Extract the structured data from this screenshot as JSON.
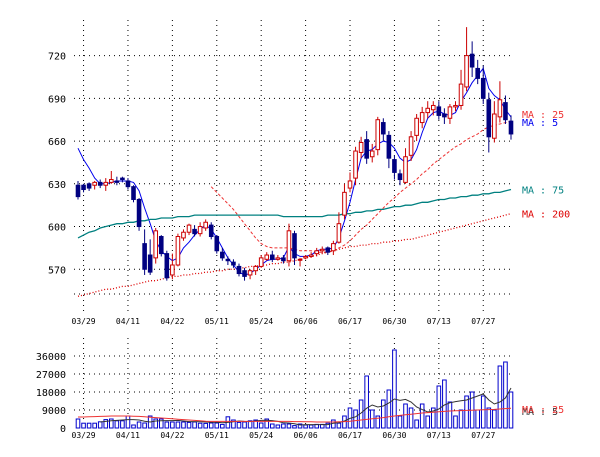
{
  "chart_data": [
    {
      "type": "candlestick",
      "ylim": [
        540,
        745
      ],
      "y_ticks": [
        570,
        600,
        630,
        660,
        690,
        720
      ],
      "x_tick_labels": [
        "03/29",
        "04/11",
        "04/22",
        "05/11",
        "05/24",
        "06/06",
        "06/17",
        "06/30",
        "07/13",
        "07/27"
      ],
      "x_tick_index": [
        1,
        9,
        17,
        25,
        33,
        41,
        49,
        57,
        65,
        73
      ],
      "candles": [
        [
          629,
          621,
          632,
          619
        ],
        [
          629,
          626,
          630,
          624
        ],
        [
          630,
          627,
          631,
          625
        ],
        [
          629,
          631,
          632,
          626
        ],
        [
          631,
          629,
          633,
          627
        ],
        [
          629,
          631,
          634,
          625
        ],
        [
          631,
          633,
          639,
          630
        ],
        [
          632,
          631,
          635,
          629
        ],
        [
          634,
          633,
          635,
          631
        ],
        [
          632,
          628,
          634,
          626
        ],
        [
          628,
          619,
          629,
          617
        ],
        [
          619,
          600,
          620,
          597
        ],
        [
          588,
          570,
          598,
          566
        ],
        [
          580,
          568,
          591,
          566
        ],
        [
          578,
          597,
          599,
          574
        ],
        [
          593,
          581,
          594,
          579
        ],
        [
          581,
          564,
          583,
          562
        ],
        [
          566,
          573,
          581,
          563
        ],
        [
          573,
          593,
          595,
          572
        ],
        [
          592,
          596,
          598,
          590
        ],
        [
          596,
          601,
          602,
          594
        ],
        [
          598,
          595,
          601,
          593
        ],
        [
          595,
          600,
          603,
          593
        ],
        [
          599,
          603,
          605,
          597
        ],
        [
          601,
          593,
          603,
          591
        ],
        [
          593,
          583,
          594,
          581
        ],
        [
          582,
          578,
          585,
          576
        ],
        [
          577,
          576,
          579,
          573
        ],
        [
          575,
          573,
          577,
          571
        ],
        [
          572,
          567,
          574,
          565
        ],
        [
          569,
          565,
          571,
          562
        ],
        [
          566,
          569,
          570,
          563
        ],
        [
          569,
          572,
          573,
          566
        ],
        [
          572,
          578,
          580,
          571
        ],
        [
          577,
          580,
          582,
          576
        ],
        [
          580,
          577,
          583,
          575
        ],
        [
          577,
          578,
          580,
          576
        ],
        [
          578,
          576,
          580,
          574
        ],
        [
          576,
          597,
          602,
          572
        ],
        [
          595,
          578,
          597,
          573
        ],
        [
          577,
          577,
          578,
          572
        ],
        [
          578,
          579,
          580,
          577
        ],
        [
          579,
          580,
          582,
          578
        ],
        [
          581,
          583,
          585,
          579
        ],
        [
          583,
          584,
          586,
          581
        ],
        [
          585,
          582,
          586,
          580
        ],
        [
          583,
          588,
          590,
          580
        ],
        [
          589,
          602,
          610,
          588
        ],
        [
          608,
          624,
          630,
          605
        ],
        [
          627,
          632,
          638,
          624
        ],
        [
          634,
          653,
          656,
          629
        ],
        [
          652,
          659,
          663,
          648
        ],
        [
          661,
          648,
          667,
          644
        ],
        [
          649,
          653,
          658,
          645
        ],
        [
          654,
          675,
          677,
          650
        ],
        [
          673,
          665,
          676,
          660
        ],
        [
          664,
          648,
          667,
          641
        ],
        [
          647,
          638,
          650,
          633
        ],
        [
          637,
          633,
          640,
          629
        ],
        [
          631,
          649,
          655,
          630
        ],
        [
          650,
          663,
          667,
          646
        ],
        [
          664,
          676,
          679,
          660
        ],
        [
          673,
          680,
          684,
          669
        ],
        [
          680,
          683,
          688,
          676
        ],
        [
          682,
          685,
          688,
          678
        ],
        [
          684,
          678,
          688,
          675
        ],
        [
          679,
          677,
          683,
          672
        ],
        [
          676,
          684,
          686,
          672
        ],
        [
          684,
          685,
          688,
          681
        ],
        [
          685,
          700,
          710,
          682
        ],
        [
          698,
          720,
          740,
          695
        ],
        [
          721,
          712,
          730,
          705
        ],
        [
          711,
          704,
          717,
          700
        ],
        [
          704,
          690,
          713,
          686
        ],
        [
          689,
          663,
          694,
          652
        ],
        [
          662,
          679,
          688,
          659
        ],
        [
          677,
          689,
          702,
          673
        ],
        [
          687,
          675,
          692,
          672
        ],
        [
          674,
          665,
          678,
          661
        ]
      ],
      "series": [
        {
          "name": "MA : 5",
          "color": "#0000ee",
          "line": "solid",
          "values": [
            655,
            647,
            641,
            634,
            630,
            630,
            631,
            632,
            632,
            632,
            631,
            625,
            613,
            602,
            590,
            583,
            579,
            576,
            578,
            585,
            589,
            594,
            598,
            601,
            598,
            592,
            585,
            578,
            573,
            568,
            566,
            567,
            570,
            573,
            576,
            577,
            577,
            578,
            586,
            581,
            579,
            579,
            580,
            583,
            584,
            584,
            585,
            592,
            604,
            617,
            633,
            648,
            653,
            654,
            658,
            660,
            659,
            655,
            648,
            645,
            647,
            654,
            666,
            676,
            680,
            681,
            679,
            678,
            680,
            688,
            694,
            701,
            706,
            711,
            697,
            692,
            689,
            682,
            677
          ]
        },
        {
          "name": "MA : 25",
          "color": "#ee3333",
          "line": "dashed",
          "values": [
            null,
            null,
            null,
            null,
            null,
            null,
            null,
            null,
            null,
            null,
            null,
            null,
            null,
            null,
            null,
            null,
            null,
            null,
            null,
            null,
            null,
            null,
            null,
            null,
            628,
            624,
            620,
            616,
            612,
            607,
            602,
            597,
            592,
            588,
            586,
            585,
            585,
            585,
            585,
            584,
            583,
            583,
            583,
            582,
            582,
            582,
            583,
            585,
            587,
            590,
            594,
            598,
            601,
            605,
            609,
            613,
            617,
            620,
            624,
            627,
            630,
            633,
            637,
            640,
            644,
            647,
            650,
            653,
            656,
            658,
            661,
            663,
            665,
            668,
            670,
            671,
            672,
            673,
            674
          ]
        },
        {
          "name": "MA : 75",
          "color": "#008080",
          "line": "solid",
          "values": [
            592,
            594,
            596,
            597,
            599,
            600,
            601,
            602,
            602,
            603,
            603,
            604,
            604,
            605,
            605,
            606,
            606,
            606,
            607,
            607,
            607,
            608,
            608,
            608,
            608,
            608,
            608,
            608,
            608,
            608,
            608,
            608,
            608,
            608,
            608,
            608,
            608,
            607,
            607,
            607,
            607,
            607,
            607,
            607,
            607,
            608,
            608,
            608,
            609,
            609,
            610,
            610,
            611,
            611,
            612,
            612,
            613,
            614,
            614,
            615,
            615,
            616,
            617,
            617,
            618,
            619,
            619,
            620,
            620,
            621,
            621,
            622,
            622,
            623,
            623,
            624,
            624,
            625,
            626
          ]
        },
        {
          "name": "MA : 200",
          "color": "#dd0000",
          "line": "dotted",
          "values": [
            551,
            552,
            553,
            554,
            555,
            556,
            556,
            557,
            558,
            558,
            559,
            560,
            561,
            562,
            562,
            563,
            564,
            565,
            565,
            566,
            566,
            567,
            567,
            568,
            568,
            569,
            569,
            570,
            570,
            571,
            571,
            572,
            572,
            573,
            573,
            574,
            574,
            575,
            575,
            576,
            577,
            578,
            579,
            580,
            581,
            582,
            583,
            584,
            585,
            586,
            586,
            587,
            587,
            588,
            588,
            589,
            589,
            590,
            590,
            591,
            591,
            592,
            593,
            594,
            595,
            596,
            597,
            598,
            599,
            600,
            601,
            602,
            603,
            604,
            605,
            606,
            607,
            608,
            609
          ]
        }
      ]
    },
    {
      "type": "bar",
      "ylim": [
        0,
        45000
      ],
      "y_ticks": [
        0,
        9000,
        18000,
        27000,
        36000
      ],
      "x_tick_labels": [
        "03/29",
        "04/11",
        "04/22",
        "05/11",
        "05/24",
        "06/06",
        "06/17",
        "06/30",
        "07/13",
        "07/27"
      ],
      "values": [
        4500,
        2400,
        2400,
        2400,
        3100,
        4200,
        4500,
        3600,
        3600,
        6000,
        1500,
        3000,
        2500,
        6000,
        4500,
        4500,
        3000,
        3000,
        3000,
        3000,
        2800,
        3000,
        2400,
        2300,
        2500,
        2500,
        1800,
        5600,
        4000,
        2800,
        3000,
        3600,
        4000,
        2500,
        4500,
        2000,
        1500,
        2000,
        2000,
        1200,
        2000,
        1500,
        1500,
        1800,
        1800,
        2400,
        4000,
        2400,
        6000,
        10000,
        9000,
        14000,
        26000,
        9000,
        6000,
        14000,
        19000,
        39000,
        6000,
        12000,
        10000,
        4000,
        12000,
        6000,
        10000,
        21000,
        24000,
        13000,
        6000,
        9000,
        16000,
        18000,
        9000,
        16000,
        10000,
        9000,
        31000,
        33000,
        18000
      ],
      "series": [
        {
          "name": "MA : 5",
          "color": "#333333",
          "values": [
            null,
            null,
            null,
            null,
            3000,
            3300,
            3600,
            3800,
            4000,
            4200,
            4200,
            4000,
            3400,
            3000,
            3500,
            3600,
            3700,
            3700,
            3800,
            3500,
            3200,
            3200,
            3100,
            3000,
            2900,
            2900,
            2600,
            2800,
            3100,
            3500,
            3300,
            3200,
            3500,
            3800,
            3900,
            3700,
            3300,
            2600,
            2500,
            2100,
            1500,
            1700,
            1700,
            1700,
            1700,
            1700,
            2400,
            2700,
            3500,
            4800,
            5600,
            7500,
            9900,
            11500,
            10500,
            11000,
            12500,
            14500,
            13800,
            14300,
            13000,
            10500,
            9200,
            8000,
            8500,
            9500,
            11500,
            12600,
            13200,
            13600,
            14000,
            15000,
            16000,
            17000,
            14000,
            12000,
            13000,
            15000,
            20000
          ]
        },
        {
          "name": "MA : 25",
          "color": "#ee3333",
          "values": [
            5500,
            5500,
            5600,
            5700,
            5800,
            5900,
            6000,
            6000,
            6000,
            6000,
            5900,
            5800,
            5600,
            5400,
            5200,
            5000,
            4800,
            4600,
            4400,
            4200,
            4000,
            3800,
            3600,
            3400,
            3300,
            3300,
            3300,
            3300,
            3300,
            3300,
            3300,
            3300,
            3300,
            3300,
            3300,
            3300,
            3300,
            3300,
            3300,
            3200,
            3200,
            3100,
            3100,
            3000,
            3000,
            3000,
            3000,
            3100,
            3200,
            3400,
            3700,
            4000,
            4300,
            4600,
            4900,
            5200,
            5600,
            6000,
            6300,
            6600,
            6900,
            7200,
            7500,
            7700,
            7900,
            8100,
            8300,
            8500,
            8600,
            8700,
            8800,
            8900,
            9000,
            9100,
            9200,
            9300,
            9500,
            9700,
            9900
          ]
        }
      ]
    }
  ]
}
